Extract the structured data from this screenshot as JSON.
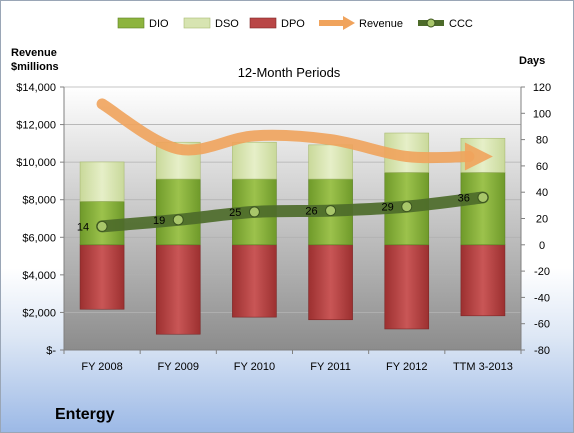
{
  "chart_data": {
    "type": "bar",
    "title": "12-Month Periods",
    "company": "Entergy",
    "left_axis_label_line1": "Revenue",
    "left_axis_label_line2": "$millions",
    "right_axis_label": "Days",
    "categories": [
      "FY 2008",
      "FY 2009",
      "FY 2010",
      "FY 2011",
      "FY 2012",
      "TTM 3-2013"
    ],
    "left_axis": {
      "range": [
        0,
        14000
      ],
      "ticks": [
        0,
        2000,
        4000,
        6000,
        8000,
        10000,
        12000,
        14000
      ],
      "tick_labels": [
        "$-",
        "$2,000",
        "$4,000",
        "$6,000",
        "$8,000",
        "$10,000",
        "$12,000",
        "$14,000"
      ]
    },
    "right_axis": {
      "range": [
        -80,
        120
      ],
      "ticks": [
        -80,
        -60,
        -40,
        -20,
        0,
        20,
        40,
        60,
        80,
        100,
        120
      ],
      "tick_labels": [
        "-80",
        "-60",
        "-40",
        "-20",
        "0",
        "20",
        "40",
        "60",
        "80",
        "100",
        "120"
      ]
    },
    "legend": {
      "position": "top",
      "entries": [
        "DIO",
        "DSO",
        "DPO",
        "Revenue",
        "CCC"
      ]
    },
    "series": [
      {
        "name": "DIO",
        "axis": "right",
        "kind": "stacked-bar",
        "values": [
          33,
          50,
          50,
          50,
          55,
          55
        ],
        "color": "#8db43e"
      },
      {
        "name": "DSO",
        "axis": "right",
        "kind": "stacked-bar",
        "values": [
          30,
          28,
          28,
          26,
          30,
          26
        ],
        "color": "#d7e4b1"
      },
      {
        "name": "DPO",
        "axis": "right",
        "kind": "negative-bar",
        "values": [
          -49,
          -68,
          -55,
          -57,
          -64,
          -54
        ],
        "color": "#b94646"
      },
      {
        "name": "Revenue",
        "axis": "left",
        "kind": "line-arrow",
        "values": [
          13100,
          10700,
          11400,
          11200,
          10300,
          10300
        ],
        "color": "#f0a35c"
      },
      {
        "name": "CCC",
        "axis": "right",
        "kind": "line-marker",
        "values": [
          14,
          19,
          25,
          26,
          29,
          36
        ],
        "labels": [
          "14",
          "19",
          "25",
          "26",
          "29",
          "36"
        ],
        "color": "#4d6b2a"
      }
    ],
    "grid": true
  },
  "colors": {
    "plot_top": "#ffffff",
    "plot_bottom": "#8c8c8c",
    "dio": "#8db43e",
    "dso": "#d7e4b1",
    "dpo": "#b94646",
    "revenue": "#f0a35c",
    "ccc": "#4d6b2a"
  }
}
